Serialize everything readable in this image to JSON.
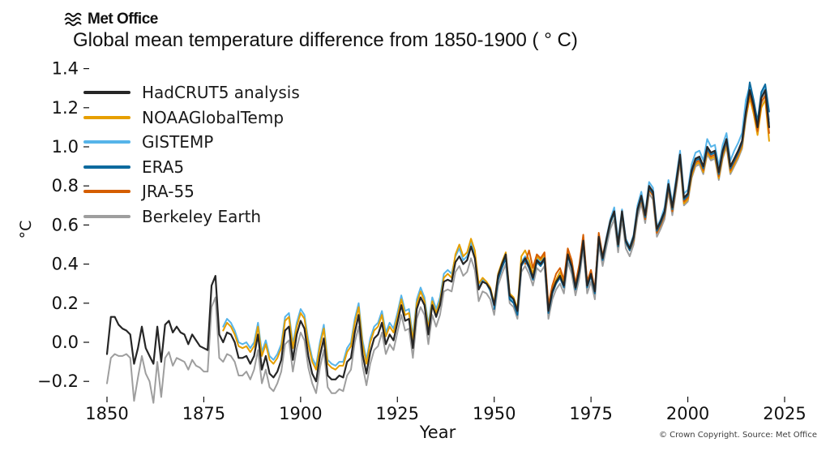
{
  "header": {
    "logo_text": "Met Office",
    "title": "Global mean temperature difference from 1850-1900 ( ° C)"
  },
  "footer": {
    "copyright": "© Crown Copyright. Source: Met Office"
  },
  "colors": {
    "hadcrut5": "#262626",
    "noaa": "#E69F00",
    "gistemp": "#56B4E9",
    "era5": "#0D6A9E",
    "jra55": "#D55E00",
    "berkeley": "#9E9E9E"
  },
  "chart_data": {
    "type": "line",
    "title": "Global mean temperature difference from 1850-1900 ( ° C)",
    "xlabel": "Year",
    "ylabel": "°C",
    "xlim": [
      1845,
      2032
    ],
    "ylim": [
      -0.32,
      1.42
    ],
    "xticks": [
      1850,
      1875,
      1900,
      1925,
      1950,
      1975,
      2000,
      2025
    ],
    "yticks": [
      -0.2,
      0.0,
      0.2,
      0.4,
      0.6,
      0.8,
      1.0,
      1.2,
      1.4
    ],
    "grid": false,
    "legend_position": "upper left",
    "draw_order": [
      5,
      2,
      1,
      4,
      3,
      0
    ],
    "series": [
      {
        "name": "HadCRUT5 analysis",
        "color": "#262626",
        "line_width": 2.2,
        "start_year": 1850,
        "values": [
          -0.06,
          0.13,
          0.13,
          0.09,
          0.07,
          0.06,
          0.04,
          -0.11,
          -0.03,
          0.08,
          -0.03,
          -0.07,
          -0.11,
          0.08,
          -0.1,
          0.09,
          0.11,
          0.05,
          0.08,
          0.05,
          0.04,
          -0.01,
          0.04,
          0.01,
          -0.02,
          -0.03,
          -0.04,
          0.29,
          0.34,
          0.04,
          0.0,
          0.05,
          0.04,
          0.0,
          -0.08,
          -0.08,
          -0.07,
          -0.11,
          -0.07,
          0.04,
          -0.14,
          -0.07,
          -0.16,
          -0.18,
          -0.15,
          -0.09,
          0.06,
          0.08,
          -0.09,
          0.04,
          0.11,
          0.07,
          -0.07,
          -0.16,
          -0.2,
          -0.07,
          0.02,
          -0.17,
          -0.19,
          -0.19,
          -0.17,
          -0.18,
          -0.1,
          -0.08,
          0.05,
          0.14,
          -0.06,
          -0.16,
          -0.05,
          0.02,
          0.04,
          0.1,
          -0.01,
          0.04,
          0.01,
          0.1,
          0.19,
          0.11,
          0.12,
          -0.03,
          0.17,
          0.23,
          0.19,
          0.04,
          0.19,
          0.13,
          0.19,
          0.31,
          0.32,
          0.31,
          0.41,
          0.44,
          0.4,
          0.42,
          0.49,
          0.43,
          0.27,
          0.31,
          0.3,
          0.27,
          0.19,
          0.34,
          0.4,
          0.45,
          0.24,
          0.22,
          0.16,
          0.4,
          0.43,
          0.39,
          0.33,
          0.42,
          0.4,
          0.43,
          0.16,
          0.26,
          0.31,
          0.34,
          0.29,
          0.45,
          0.39,
          0.28,
          0.37,
          0.52,
          0.29,
          0.35,
          0.26,
          0.54,
          0.43,
          0.53,
          0.62,
          0.67,
          0.5,
          0.67,
          0.52,
          0.48,
          0.54,
          0.68,
          0.75,
          0.65,
          0.8,
          0.77,
          0.58,
          0.62,
          0.67,
          0.81,
          0.69,
          0.82,
          0.96,
          0.74,
          0.76,
          0.88,
          0.94,
          0.95,
          0.9,
          1.0,
          0.97,
          0.98,
          0.87,
          0.98,
          1.04,
          0.9,
          0.94,
          0.98,
          1.03,
          1.18,
          1.29,
          1.21,
          1.1,
          1.25,
          1.29,
          1.1
        ]
      },
      {
        "name": "NOAAGlobalTemp",
        "color": "#E69F00",
        "line_width": 2,
        "start_year": 1880,
        "values": [
          0.06,
          0.1,
          0.08,
          0.04,
          -0.02,
          -0.03,
          -0.02,
          -0.05,
          -0.02,
          0.08,
          -0.07,
          -0.01,
          -0.09,
          -0.11,
          -0.08,
          -0.03,
          0.11,
          0.13,
          -0.03,
          0.08,
          0.15,
          0.12,
          -0.01,
          -0.1,
          -0.14,
          -0.02,
          0.07,
          -0.11,
          -0.13,
          -0.14,
          -0.12,
          -0.12,
          -0.05,
          -0.02,
          0.1,
          0.18,
          -0.01,
          -0.11,
          0.0,
          0.06,
          0.08,
          0.14,
          0.03,
          0.08,
          0.05,
          0.13,
          0.22,
          0.14,
          0.15,
          0.01,
          0.2,
          0.26,
          0.21,
          0.07,
          0.21,
          0.15,
          0.21,
          0.33,
          0.35,
          0.33,
          0.45,
          0.5,
          0.44,
          0.46,
          0.53,
          0.47,
          0.3,
          0.33,
          0.31,
          0.28,
          0.2,
          0.35,
          0.41,
          0.46,
          0.25,
          0.23,
          0.17,
          0.44,
          0.47,
          0.42,
          0.35,
          0.44,
          0.42,
          0.45,
          0.18,
          0.27,
          0.32,
          0.36,
          0.3,
          0.46,
          0.4,
          0.29,
          0.38,
          0.53,
          0.3,
          0.36,
          0.26,
          0.55,
          0.43,
          0.52,
          0.61,
          0.66,
          0.49,
          0.66,
          0.51,
          0.47,
          0.52,
          0.67,
          0.73,
          0.63,
          0.78,
          0.75,
          0.56,
          0.6,
          0.65,
          0.79,
          0.67,
          0.8,
          0.94,
          0.71,
          0.73,
          0.85,
          0.91,
          0.92,
          0.87,
          0.97,
          0.94,
          0.95,
          0.84,
          0.95,
          1.01,
          0.87,
          0.91,
          0.95,
          1.0,
          1.15,
          1.25,
          1.17,
          1.06,
          1.2,
          1.24,
          1.03
        ]
      },
      {
        "name": "GISTEMP",
        "color": "#56B4E9",
        "line_width": 2,
        "start_year": 1880,
        "values": [
          0.08,
          0.12,
          0.1,
          0.06,
          0.0,
          -0.01,
          0.0,
          -0.03,
          0.0,
          0.1,
          -0.05,
          0.01,
          -0.07,
          -0.09,
          -0.06,
          -0.01,
          0.13,
          0.15,
          -0.01,
          0.1,
          0.17,
          0.14,
          0.01,
          -0.08,
          -0.12,
          0.0,
          0.09,
          -0.09,
          -0.11,
          -0.12,
          -0.1,
          -0.1,
          -0.03,
          0.0,
          0.12,
          0.2,
          0.01,
          -0.09,
          0.02,
          0.08,
          0.1,
          0.16,
          0.05,
          0.1,
          0.07,
          0.15,
          0.24,
          0.16,
          0.17,
          0.03,
          0.22,
          0.28,
          0.23,
          0.09,
          0.23,
          0.17,
          0.23,
          0.35,
          0.37,
          0.35,
          0.44,
          0.48,
          0.42,
          0.44,
          0.51,
          0.45,
          0.28,
          0.32,
          0.3,
          0.26,
          0.18,
          0.33,
          0.39,
          0.44,
          0.23,
          0.21,
          0.15,
          0.41,
          0.44,
          0.4,
          0.34,
          0.43,
          0.41,
          0.44,
          0.17,
          0.25,
          0.3,
          0.35,
          0.3,
          0.44,
          0.4,
          0.29,
          0.39,
          0.54,
          0.3,
          0.36,
          0.27,
          0.55,
          0.44,
          0.54,
          0.63,
          0.69,
          0.52,
          0.68,
          0.53,
          0.49,
          0.55,
          0.7,
          0.77,
          0.66,
          0.82,
          0.79,
          0.59,
          0.63,
          0.69,
          0.83,
          0.71,
          0.84,
          0.98,
          0.76,
          0.78,
          0.91,
          0.97,
          0.98,
          0.93,
          1.04,
          1.0,
          1.01,
          0.9,
          1.01,
          1.07,
          0.93,
          0.98,
          1.02,
          1.07,
          1.24,
          1.31,
          1.23,
          1.12,
          1.27,
          1.31,
          1.12
        ]
      },
      {
        "name": "ERA5",
        "color": "#0D6A9E",
        "line_width": 2,
        "start_year": 1950,
        "values": [
          0.17,
          0.32,
          0.38,
          0.43,
          0.22,
          0.2,
          0.14,
          0.39,
          0.42,
          0.38,
          0.32,
          0.41,
          0.39,
          0.42,
          0.15,
          0.25,
          0.3,
          0.33,
          0.28,
          0.44,
          0.38,
          0.27,
          0.36,
          0.51,
          0.28,
          0.34,
          0.25,
          0.53,
          0.42,
          0.52,
          0.61,
          0.66,
          0.49,
          0.66,
          0.51,
          0.47,
          0.53,
          0.67,
          0.74,
          0.64,
          0.79,
          0.76,
          0.57,
          0.61,
          0.66,
          0.8,
          0.68,
          0.81,
          0.95,
          0.73,
          0.75,
          0.87,
          0.93,
          0.94,
          0.89,
          0.99,
          0.96,
          0.97,
          0.86,
          0.97,
          1.03,
          0.89,
          0.93,
          0.97,
          1.02,
          1.17,
          1.33,
          1.24,
          1.13,
          1.28,
          1.32,
          1.18
        ]
      },
      {
        "name": "JRA-55",
        "color": "#D55E00",
        "line_width": 2,
        "start_year": 1958,
        "values": [
          0.4,
          0.47,
          0.38,
          0.45,
          0.43,
          0.46,
          0.19,
          0.29,
          0.35,
          0.38,
          0.32,
          0.48,
          0.42,
          0.3,
          0.4,
          0.55,
          0.31,
          0.37,
          0.27,
          0.56,
          0.44,
          0.53,
          0.62,
          0.67,
          0.49,
          0.66,
          0.51,
          0.47,
          0.52,
          0.67,
          0.73,
          0.63,
          0.78,
          0.75,
          0.56,
          0.6,
          0.65,
          0.79,
          0.67,
          0.8,
          0.94,
          0.72,
          0.74,
          0.86,
          0.92,
          0.93,
          0.88,
          0.98,
          0.95,
          0.96,
          0.85,
          0.96,
          1.02,
          0.88,
          0.92,
          0.96,
          1.01,
          1.16,
          1.27,
          1.19,
          1.08,
          1.23,
          1.26,
          1.07
        ]
      },
      {
        "name": "Berkeley Earth",
        "color": "#9E9E9E",
        "line_width": 2,
        "start_year": 1850,
        "values": [
          -0.21,
          -0.08,
          -0.06,
          -0.07,
          -0.07,
          -0.06,
          -0.08,
          -0.3,
          -0.18,
          -0.07,
          -0.16,
          -0.2,
          -0.31,
          -0.1,
          -0.28,
          -0.08,
          -0.05,
          -0.12,
          -0.08,
          -0.09,
          -0.1,
          -0.14,
          -0.09,
          -0.12,
          -0.13,
          -0.15,
          -0.15,
          0.18,
          0.23,
          -0.08,
          -0.1,
          -0.06,
          -0.07,
          -0.1,
          -0.17,
          -0.17,
          -0.15,
          -0.19,
          -0.14,
          -0.04,
          -0.21,
          -0.14,
          -0.23,
          -0.25,
          -0.21,
          -0.15,
          -0.01,
          0.01,
          -0.15,
          -0.03,
          0.05,
          0.01,
          -0.13,
          -0.21,
          -0.26,
          -0.13,
          -0.04,
          -0.23,
          -0.26,
          -0.26,
          -0.24,
          -0.25,
          -0.17,
          -0.14,
          0.0,
          0.08,
          -0.12,
          -0.22,
          -0.11,
          -0.04,
          -0.02,
          0.05,
          -0.06,
          -0.01,
          -0.04,
          0.05,
          0.14,
          0.06,
          0.07,
          -0.08,
          0.12,
          0.18,
          0.14,
          -0.01,
          0.14,
          0.08,
          0.14,
          0.26,
          0.27,
          0.26,
          0.36,
          0.39,
          0.34,
          0.36,
          0.43,
          0.37,
          0.21,
          0.26,
          0.25,
          0.22,
          0.14,
          0.29,
          0.35,
          0.4,
          0.2,
          0.18,
          0.12,
          0.36,
          0.39,
          0.35,
          0.29,
          0.38,
          0.36,
          0.39,
          0.12,
          0.22,
          0.27,
          0.3,
          0.25,
          0.41,
          0.35,
          0.24,
          0.33,
          0.48,
          0.25,
          0.31,
          0.22,
          0.5,
          0.39,
          0.49,
          0.58,
          0.63,
          0.46,
          0.63,
          0.48,
          0.44,
          0.5,
          0.64,
          0.71,
          0.61,
          0.76,
          0.73,
          0.54,
          0.58,
          0.63,
          0.77,
          0.65,
          0.78,
          0.92,
          0.7,
          0.72,
          0.84,
          0.9,
          0.91,
          0.86,
          0.96,
          0.93,
          0.94,
          0.83,
          0.94,
          1.0,
          0.86,
          0.9,
          0.94,
          0.99,
          1.14,
          1.26,
          1.17,
          1.07,
          1.22,
          1.27,
          1.14
        ]
      }
    ]
  }
}
